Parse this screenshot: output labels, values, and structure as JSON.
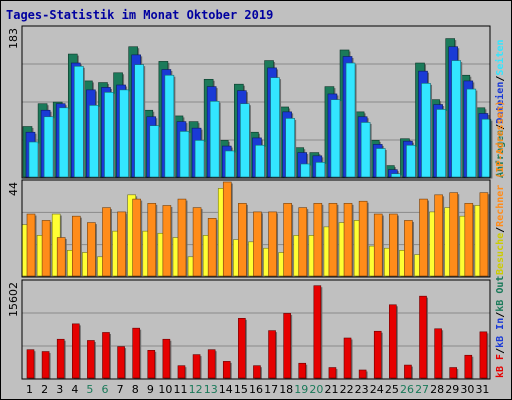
{
  "chart_data": {
    "type": "bar",
    "title": "Tages-Statistik im Monat Oktober 2019",
    "categories": [
      "1",
      "2",
      "3",
      "4",
      "5",
      "6",
      "7",
      "8",
      "9",
      "10",
      "11",
      "12",
      "13",
      "14",
      "15",
      "16",
      "17",
      "18",
      "19",
      "20",
      "21",
      "22",
      "23",
      "24",
      "25",
      "26",
      "27",
      "28",
      "29",
      "30",
      "31"
    ],
    "weekend_days": [
      5,
      6,
      12,
      13,
      19,
      20,
      26,
      27
    ],
    "panels": [
      {
        "id": "requests",
        "ymax_label": "183",
        "ymax": 183,
        "series": [
          {
            "name": "Anfragen",
            "color": "#1b7a5a",
            "values": [
              62,
              90,
              92,
              151,
              118,
              116,
              128,
              160,
              82,
              142,
              75,
              68,
              120,
              45,
              114,
              55,
              143,
              86,
              36,
              30,
              111,
              156,
              80,
              45,
              14,
              47,
              140,
              95,
              170,
              125,
              85
            ]
          },
          {
            "name": "Dateien",
            "color": "#1a3ad6",
            "values": [
              55,
              82,
              90,
              140,
              107,
              110,
              113,
              150,
              74,
              132,
              68,
              60,
              111,
              38,
              106,
              48,
              134,
              80,
              30,
              26,
              102,
              148,
              74,
              40,
              9,
              44,
              130,
              89,
              160,
              118,
              78
            ]
          },
          {
            "name": "Seiten",
            "color": "#33e6ff",
            "values": [
              43,
              74,
              85,
              136,
              88,
              104,
              107,
              138,
              63,
              125,
              56,
              45,
              93,
              32,
              90,
              39,
              122,
              72,
              16,
              18,
              95,
              140,
              67,
              35,
              4,
              39,
              115,
              83,
              143,
              108,
              71
            ]
          }
        ]
      },
      {
        "id": "visits",
        "ymax_label": "44",
        "ymax": 44,
        "series": [
          {
            "name": "Besuche",
            "color": "#ffff33",
            "values": [
              24,
              19,
              29,
              12,
              11,
              9,
              21,
              38,
              21,
              20,
              18,
              9,
              19,
              41,
              17,
              16,
              13,
              11,
              19,
              19,
              23,
              25,
              26,
              14,
              13,
              12,
              10,
              30,
              32,
              28,
              33
            ]
          },
          {
            "name": "Rechner (IP-Adressen)",
            "color": "#ff8c1a",
            "values": [
              29,
              26,
              18,
              28,
              25,
              32,
              30,
              36,
              34,
              33,
              36,
              32,
              27,
              44,
              34,
              30,
              30,
              34,
              32,
              34,
              34,
              34,
              35,
              29,
              29,
              26,
              36,
              38,
              39,
              34,
              39
            ]
          }
        ]
      },
      {
        "id": "volume",
        "ymax_label": "15602",
        "ymax": 15602,
        "series": [
          {
            "name": "kB F",
            "color": "#e60000",
            "values": [
              4600,
              4300,
              6300,
              8800,
              6100,
              7400,
              5100,
              8100,
              4500,
              6300,
              2000,
              3800,
              4600,
              2700,
              9700,
              2000,
              7700,
              10500,
              2400,
              15000,
              1700,
              6500,
              1300,
              7600,
              11900,
              2100,
              13300,
              8000,
              1700,
              3700,
              7500
            ]
          }
        ]
      }
    ],
    "legend": [
      {
        "text": "Anfragen",
        "color": "#1b7a5a"
      },
      {
        "text": "Dateien",
        "color": "#1a3ad6"
      },
      {
        "text": "Seiten",
        "color": "#33e6ff"
      },
      {
        "text": "Besuche",
        "color": "#cccc00"
      },
      {
        "text": "Rechner (IP-Adressen)",
        "color": "#ff8c1a"
      },
      {
        "text": "kB F",
        "color": "#e60000"
      },
      {
        "text": "kB In",
        "color": "#1a3ad6"
      },
      {
        "text": "kB Out",
        "color": "#1b7a5a"
      }
    ],
    "legend_separator": "/"
  }
}
